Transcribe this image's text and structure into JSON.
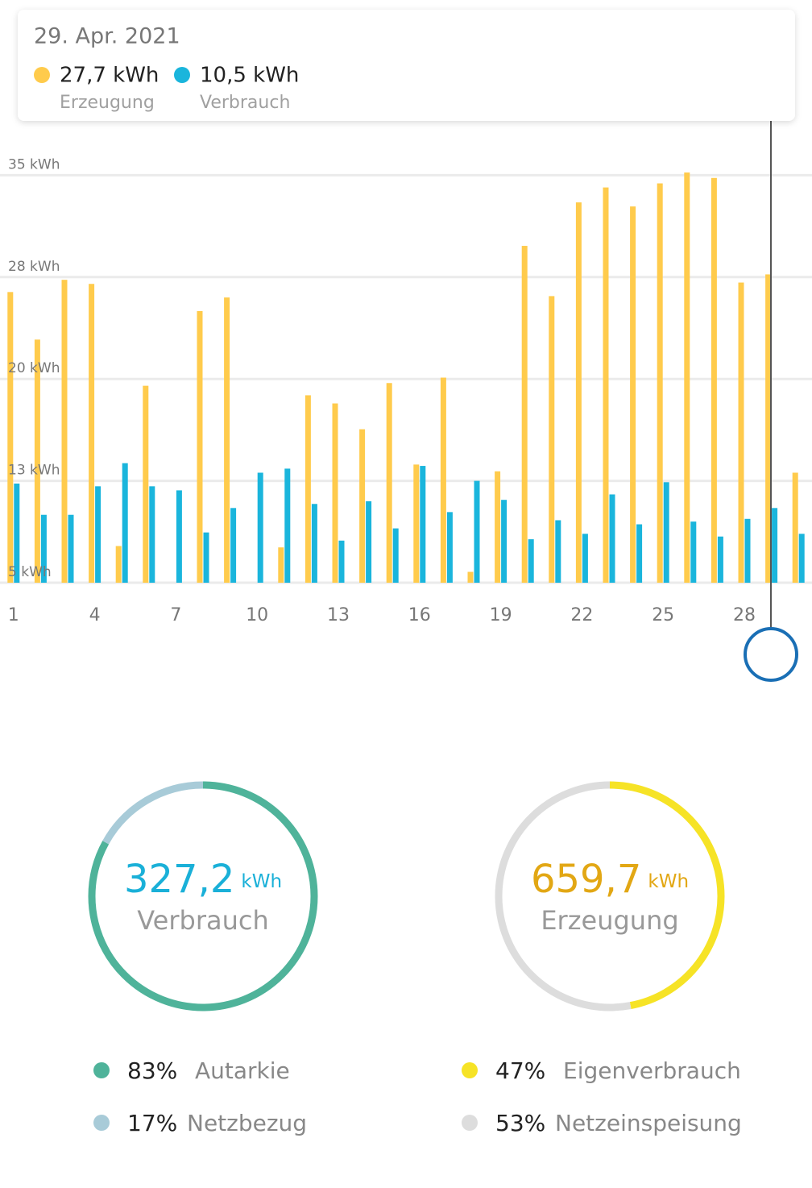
{
  "chart_data": {
    "type": "bar",
    "x": [
      1,
      2,
      3,
      4,
      5,
      6,
      7,
      8,
      9,
      10,
      11,
      12,
      13,
      14,
      15,
      16,
      17,
      18,
      19,
      20,
      21,
      22,
      23,
      24,
      25,
      26,
      27,
      28,
      29,
      30
    ],
    "xlim": [
      0.5,
      30.5
    ],
    "xticks": [
      1,
      4,
      7,
      10,
      13,
      16,
      19,
      22,
      25,
      28
    ],
    "ylim": [
      5,
      39
    ],
    "yticks": [
      {
        "value": 5,
        "label": "5 kWh"
      },
      {
        "value": 12.5,
        "label": "13 kWh"
      },
      {
        "value": 20,
        "label": "20 kWh"
      },
      {
        "value": 27.5,
        "label": "28 kWh"
      },
      {
        "value": 35,
        "label": "35 kWh"
      }
    ],
    "grid": true,
    "series": [
      {
        "name": "Erzeugung",
        "color": "#ffcb4c",
        "values": [
          26.4,
          22.9,
          27.3,
          27.0,
          7.7,
          19.5,
          null,
          25.0,
          26.0,
          null,
          7.6,
          18.8,
          18.2,
          16.3,
          19.7,
          13.7,
          20.1,
          5.8,
          13.2,
          29.8,
          26.1,
          33.0,
          34.1,
          32.7,
          34.4,
          35.2,
          34.8,
          27.1,
          27.7,
          13.1
        ]
      },
      {
        "name": "Verbrauch",
        "color": "#1ab5dc",
        "values": [
          12.3,
          10.0,
          10.0,
          12.1,
          13.8,
          12.1,
          11.8,
          8.7,
          10.5,
          13.1,
          13.4,
          10.8,
          8.1,
          11.0,
          9.0,
          13.6,
          10.2,
          12.5,
          11.1,
          8.2,
          9.6,
          8.6,
          11.5,
          9.3,
          12.4,
          9.5,
          8.4,
          9.7,
          10.5,
          8.6
        ]
      }
    ]
  },
  "tooltip": {
    "date": "29. Apr. 2021",
    "items": [
      {
        "text": "27,7 kWh"
      },
      {
        "text": "10,5 kWh"
      }
    ]
  },
  "donuts": [
    {
      "total": "327,2",
      "unit": "kWh",
      "label": "Verbrauch",
      "color": "#1ab0d8",
      "segments": [
        {
          "name": "Autarkie",
          "value": 83,
          "value_label": "83%",
          "color": "#4fb39a"
        },
        {
          "name": "Netzbezug",
          "value": 17,
          "value_label": "17%",
          "color": "#a8cbd8"
        }
      ]
    },
    {
      "total": "659,7",
      "unit": "kWh",
      "label": "Erzeugung",
      "color": "#e2a714",
      "segments": [
        {
          "name": "Eigenverbrauch",
          "value": 47,
          "value_label": "47%",
          "color": "#f6e326"
        },
        {
          "name": "Netzeinspeisung",
          "value": 53,
          "value_label": "53%",
          "color": "#dddddd"
        }
      ]
    }
  ]
}
